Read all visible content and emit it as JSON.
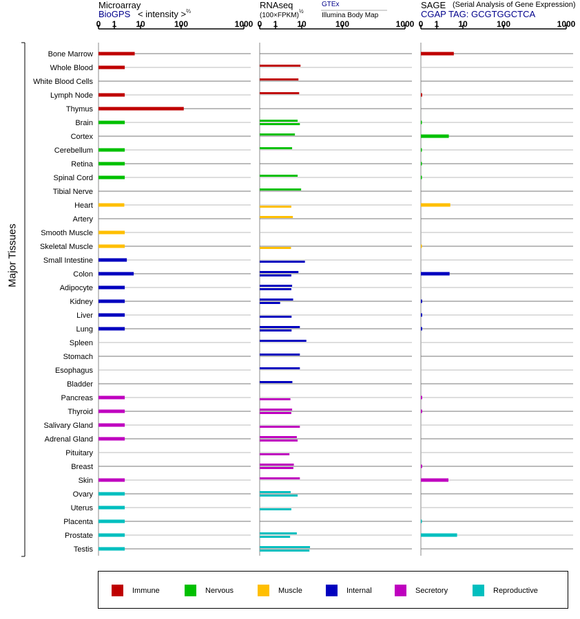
{
  "panels": [
    {
      "title": "Microarray",
      "source": "BioGPS",
      "scale_label": "< intensity >",
      "scale_power": "⅔",
      "subtitle_extra": ""
    },
    {
      "title": "RNAseq",
      "source": "(100×FPKM)",
      "scale_power": "½",
      "source2": "GTEx",
      "source3": "Illumina Body Map"
    },
    {
      "title": "SAGE",
      "note": "(Serial Analysis of Gene Expression)",
      "source": "CGAP TAG: GCGTGGCTCA"
    }
  ],
  "y_axis_title": "Major Tissues",
  "legend": [
    {
      "label": "Immune",
      "color": "#bf0000"
    },
    {
      "label": "Nervous",
      "color": "#00c000"
    },
    {
      "label": "Muscle",
      "color": "#ffbf00"
    },
    {
      "label": "Internal",
      "color": "#0000bf"
    },
    {
      "label": "Secretory",
      "color": "#bf00bf"
    },
    {
      "label": "Reproductive",
      "color": "#00bfbf"
    }
  ],
  "chart_data": {
    "type": "bar",
    "x_ticks": [
      "0",
      "1",
      "10",
      "100",
      "1000"
    ],
    "xlim": [
      0,
      1000
    ],
    "categories": [
      "Bone Marrow",
      "Whole Blood",
      "White Blood Cells",
      "Lymph Node",
      "Thymus",
      "Brain",
      "Cortex",
      "Cerebellum",
      "Retina",
      "Spinal Cord",
      "Tibial Nerve",
      "Heart",
      "Artery",
      "Smooth Muscle",
      "Skeletal Muscle",
      "Small Intestine",
      "Colon",
      "Adipocyte",
      "Kidney",
      "Liver",
      "Lung",
      "Spleen",
      "Stomach",
      "Esophagus",
      "Bladder",
      "Pancreas",
      "Thyroid",
      "Salivary Gland",
      "Adrenal Gland",
      "Pituitary",
      "Breast",
      "Skin",
      "Ovary",
      "Uterus",
      "Placenta",
      "Prostate",
      "Testis"
    ],
    "category_group": [
      0,
      0,
      0,
      0,
      0,
      1,
      1,
      1,
      1,
      1,
      1,
      2,
      2,
      2,
      2,
      3,
      3,
      3,
      3,
      3,
      3,
      3,
      3,
      3,
      3,
      4,
      4,
      4,
      4,
      4,
      4,
      4,
      5,
      5,
      5,
      5,
      5
    ],
    "microarray": [
      6,
      2.5,
      null,
      2.5,
      110,
      2.5,
      null,
      2.5,
      2.5,
      2.5,
      null,
      2.4,
      null,
      2.5,
      2.5,
      3,
      5.5,
      2.5,
      2.5,
      2.5,
      2.5,
      null,
      null,
      null,
      null,
      2.5,
      2.5,
      2.5,
      2.5,
      null,
      null,
      2.5,
      2.5,
      2.5,
      2.5,
      2.5,
      2.5
    ],
    "rnaseq_gtex": [
      null,
      9,
      7.5,
      8,
      null,
      7,
      5.5,
      4.3,
      null,
      7,
      9.5,
      null,
      4.6,
      null,
      null,
      null,
      7.5,
      4.3,
      4.7,
      null,
      8.5,
      13,
      8.5,
      8.5,
      4.4,
      null,
      4.3,
      null,
      6.5,
      null,
      5,
      8.5,
      3.8,
      null,
      null,
      6.5,
      16
    ],
    "rnaseq_ibm": [
      null,
      null,
      null,
      null,
      null,
      8.5,
      null,
      null,
      null,
      null,
      null,
      4,
      null,
      null,
      3.9,
      12,
      4,
      4,
      1.5,
      4.1,
      4.1,
      null,
      null,
      null,
      null,
      3.7,
      4,
      8.5,
      7,
      3.4,
      4.8,
      null,
      7,
      4,
      null,
      3.6,
      15.5
    ],
    "sage": [
      4.5,
      null,
      null,
      0.08,
      null,
      0.05,
      2.9,
      0.05,
      0.05,
      0.05,
      null,
      3.3,
      null,
      null,
      0.04,
      null,
      3.1,
      null,
      0.08,
      0.08,
      0.08,
      null,
      null,
      null,
      null,
      0.08,
      0.08,
      null,
      null,
      null,
      0.08,
      2.8,
      null,
      null,
      0.05,
      6,
      null
    ]
  }
}
